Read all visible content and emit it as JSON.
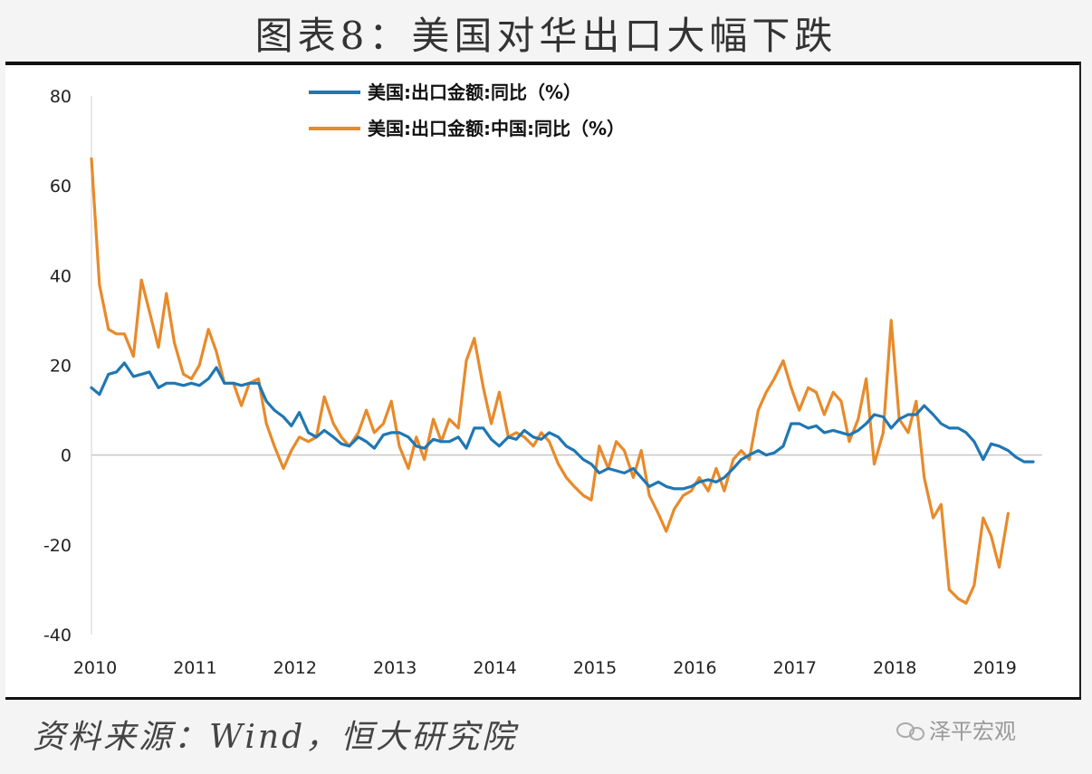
{
  "figure": {
    "title": "图表8：美国对华出口大幅下跌",
    "source": "资料来源：Wind，恒大研究院",
    "watermark": "泽平宏观"
  },
  "chart_data": {
    "type": "line",
    "x_tick_labels": [
      "2010",
      "2011",
      "2012",
      "2013",
      "2014",
      "2015",
      "2016",
      "2017",
      "2018",
      "2019"
    ],
    "y_tick_labels": [
      "80",
      "60",
      "40",
      "20",
      "0",
      "-20",
      "-40"
    ],
    "ylim": [
      -40,
      80
    ],
    "xlim": [
      2010.0,
      2019.42
    ],
    "grid": false,
    "legend_placement": "top",
    "series": [
      {
        "name": "美国:出口金额:同比（%）",
        "color": "#1f77b4",
        "points": [
          [
            2010.0,
            15
          ],
          [
            2010.08,
            13.5
          ],
          [
            2010.17,
            18
          ],
          [
            2010.25,
            18.5
          ],
          [
            2010.33,
            20.5
          ],
          [
            2010.42,
            17.5
          ],
          [
            2010.5,
            18
          ],
          [
            2010.58,
            18.5
          ],
          [
            2010.67,
            15
          ],
          [
            2010.75,
            16
          ],
          [
            2010.83,
            16
          ],
          [
            2010.92,
            15.5
          ],
          [
            2011.0,
            16
          ],
          [
            2011.08,
            15.5
          ],
          [
            2011.17,
            17
          ],
          [
            2011.25,
            19.5
          ],
          [
            2011.33,
            16
          ],
          [
            2011.42,
            16
          ],
          [
            2011.5,
            15.5
          ],
          [
            2011.58,
            16
          ],
          [
            2011.67,
            16
          ],
          [
            2011.75,
            12
          ],
          [
            2011.83,
            10
          ],
          [
            2011.92,
            8.5
          ],
          [
            2012.0,
            6.5
          ],
          [
            2012.08,
            9.5
          ],
          [
            2012.17,
            5
          ],
          [
            2012.25,
            4
          ],
          [
            2012.33,
            5.5
          ],
          [
            2012.42,
            4
          ],
          [
            2012.5,
            2.5
          ],
          [
            2012.58,
            2
          ],
          [
            2012.67,
            4
          ],
          [
            2012.75,
            3
          ],
          [
            2012.83,
            1.5
          ],
          [
            2012.92,
            4.5
          ],
          [
            2013.0,
            5
          ],
          [
            2013.08,
            5
          ],
          [
            2013.17,
            4
          ],
          [
            2013.25,
            2
          ],
          [
            2013.33,
            1.5
          ],
          [
            2013.42,
            3.5
          ],
          [
            2013.5,
            3
          ],
          [
            2013.58,
            3
          ],
          [
            2013.67,
            4
          ],
          [
            2013.75,
            1.5
          ],
          [
            2013.83,
            6
          ],
          [
            2013.92,
            6
          ],
          [
            2014.0,
            3.5
          ],
          [
            2014.08,
            2
          ],
          [
            2014.17,
            4
          ],
          [
            2014.25,
            3.5
          ],
          [
            2014.33,
            5.5
          ],
          [
            2014.42,
            4
          ],
          [
            2014.5,
            3.5
          ],
          [
            2014.58,
            5
          ],
          [
            2014.67,
            4
          ],
          [
            2014.75,
            2
          ],
          [
            2014.83,
            1
          ],
          [
            2014.92,
            -1
          ],
          [
            2015.0,
            -2
          ],
          [
            2015.08,
            -4
          ],
          [
            2015.17,
            -3
          ],
          [
            2015.25,
            -3.5
          ],
          [
            2015.33,
            -4
          ],
          [
            2015.42,
            -3
          ],
          [
            2015.5,
            -5
          ],
          [
            2015.58,
            -7
          ],
          [
            2015.67,
            -6
          ],
          [
            2015.75,
            -7
          ],
          [
            2015.83,
            -7.5
          ],
          [
            2015.92,
            -7.5
          ],
          [
            2016.0,
            -7
          ],
          [
            2016.08,
            -6
          ],
          [
            2016.17,
            -5.5
          ],
          [
            2016.25,
            -6
          ],
          [
            2016.33,
            -5
          ],
          [
            2016.42,
            -3
          ],
          [
            2016.5,
            -1
          ],
          [
            2016.58,
            0
          ],
          [
            2016.67,
            1
          ],
          [
            2016.75,
            0
          ],
          [
            2016.83,
            0.5
          ],
          [
            2016.92,
            2
          ],
          [
            2017.0,
            7
          ],
          [
            2017.08,
            7
          ],
          [
            2017.17,
            6
          ],
          [
            2017.25,
            6.5
          ],
          [
            2017.33,
            5
          ],
          [
            2017.42,
            5.5
          ],
          [
            2017.5,
            5
          ],
          [
            2017.58,
            4.5
          ],
          [
            2017.67,
            5.5
          ],
          [
            2017.75,
            7
          ],
          [
            2017.83,
            9
          ],
          [
            2017.92,
            8.5
          ],
          [
            2018.0,
            6
          ],
          [
            2018.08,
            8
          ],
          [
            2018.17,
            9
          ],
          [
            2018.25,
            9
          ],
          [
            2018.33,
            11
          ],
          [
            2018.42,
            9
          ],
          [
            2018.5,
            7
          ],
          [
            2018.58,
            6
          ],
          [
            2018.67,
            6
          ],
          [
            2018.75,
            5
          ],
          [
            2018.83,
            3
          ],
          [
            2018.92,
            -1
          ],
          [
            2019.0,
            2.5
          ],
          [
            2019.08,
            2
          ],
          [
            2019.17,
            1
          ],
          [
            2019.25,
            -0.5
          ],
          [
            2019.33,
            -1.5
          ],
          [
            2019.42,
            -1.5
          ]
        ]
      },
      {
        "name": "美国:出口金额:中国:同比（%）",
        "color": "#e88a2a",
        "points": [
          [
            2010.0,
            66
          ],
          [
            2010.08,
            38
          ],
          [
            2010.17,
            28
          ],
          [
            2010.25,
            27
          ],
          [
            2010.33,
            27
          ],
          [
            2010.42,
            22
          ],
          [
            2010.5,
            39
          ],
          [
            2010.58,
            32
          ],
          [
            2010.67,
            24
          ],
          [
            2010.75,
            36
          ],
          [
            2010.83,
            25
          ],
          [
            2010.92,
            18
          ],
          [
            2011.0,
            17
          ],
          [
            2011.08,
            20
          ],
          [
            2011.17,
            28
          ],
          [
            2011.25,
            23
          ],
          [
            2011.33,
            16
          ],
          [
            2011.42,
            16
          ],
          [
            2011.5,
            11
          ],
          [
            2011.58,
            16
          ],
          [
            2011.67,
            17
          ],
          [
            2011.75,
            7
          ],
          [
            2011.83,
            2
          ],
          [
            2011.92,
            -3
          ],
          [
            2012.0,
            1
          ],
          [
            2012.08,
            4
          ],
          [
            2012.17,
            3
          ],
          [
            2012.25,
            4
          ],
          [
            2012.33,
            13
          ],
          [
            2012.42,
            7
          ],
          [
            2012.5,
            4
          ],
          [
            2012.58,
            2
          ],
          [
            2012.67,
            5
          ],
          [
            2012.75,
            10
          ],
          [
            2012.83,
            5
          ],
          [
            2012.92,
            7
          ],
          [
            2013.0,
            12
          ],
          [
            2013.08,
            2
          ],
          [
            2013.17,
            -3
          ],
          [
            2013.25,
            4
          ],
          [
            2013.33,
            -1
          ],
          [
            2013.42,
            8
          ],
          [
            2013.5,
            3
          ],
          [
            2013.58,
            8
          ],
          [
            2013.67,
            6
          ],
          [
            2013.75,
            21
          ],
          [
            2013.83,
            26
          ],
          [
            2013.92,
            15
          ],
          [
            2014.0,
            7
          ],
          [
            2014.08,
            14
          ],
          [
            2014.17,
            4
          ],
          [
            2014.25,
            5
          ],
          [
            2014.33,
            4
          ],
          [
            2014.42,
            2
          ],
          [
            2014.5,
            5
          ],
          [
            2014.58,
            3
          ],
          [
            2014.67,
            -2
          ],
          [
            2014.75,
            -5
          ],
          [
            2014.83,
            -7
          ],
          [
            2014.92,
            -9
          ],
          [
            2015.0,
            -10
          ],
          [
            2015.08,
            2
          ],
          [
            2015.17,
            -3
          ],
          [
            2015.25,
            3
          ],
          [
            2015.33,
            1
          ],
          [
            2015.42,
            -5
          ],
          [
            2015.5,
            1
          ],
          [
            2015.58,
            -9
          ],
          [
            2015.67,
            -13
          ],
          [
            2015.75,
            -17
          ],
          [
            2015.83,
            -12
          ],
          [
            2015.92,
            -9
          ],
          [
            2016.0,
            -8
          ],
          [
            2016.08,
            -5
          ],
          [
            2016.17,
            -8
          ],
          [
            2016.25,
            -3
          ],
          [
            2016.33,
            -8
          ],
          [
            2016.42,
            -1
          ],
          [
            2016.5,
            1
          ],
          [
            2016.58,
            -1
          ],
          [
            2016.67,
            10
          ],
          [
            2016.75,
            14
          ],
          [
            2016.83,
            17
          ],
          [
            2016.92,
            21
          ],
          [
            2017.0,
            15
          ],
          [
            2017.08,
            10
          ],
          [
            2017.17,
            15
          ],
          [
            2017.25,
            14
          ],
          [
            2017.33,
            9
          ],
          [
            2017.42,
            14
          ],
          [
            2017.5,
            12
          ],
          [
            2017.58,
            3
          ],
          [
            2017.67,
            8
          ],
          [
            2017.75,
            17
          ],
          [
            2017.83,
            -2
          ],
          [
            2017.92,
            5
          ],
          [
            2018.0,
            30
          ],
          [
            2018.08,
            8
          ],
          [
            2018.17,
            5
          ],
          [
            2018.25,
            12
          ],
          [
            2018.33,
            -5
          ],
          [
            2018.42,
            -14
          ],
          [
            2018.5,
            -11
          ],
          [
            2018.58,
            -30
          ],
          [
            2018.67,
            -32
          ],
          [
            2018.75,
            -33
          ],
          [
            2018.83,
            -29
          ],
          [
            2018.92,
            -14
          ],
          [
            2019.0,
            -18
          ],
          [
            2019.08,
            -25
          ],
          [
            2019.17,
            -13
          ]
        ]
      }
    ]
  }
}
